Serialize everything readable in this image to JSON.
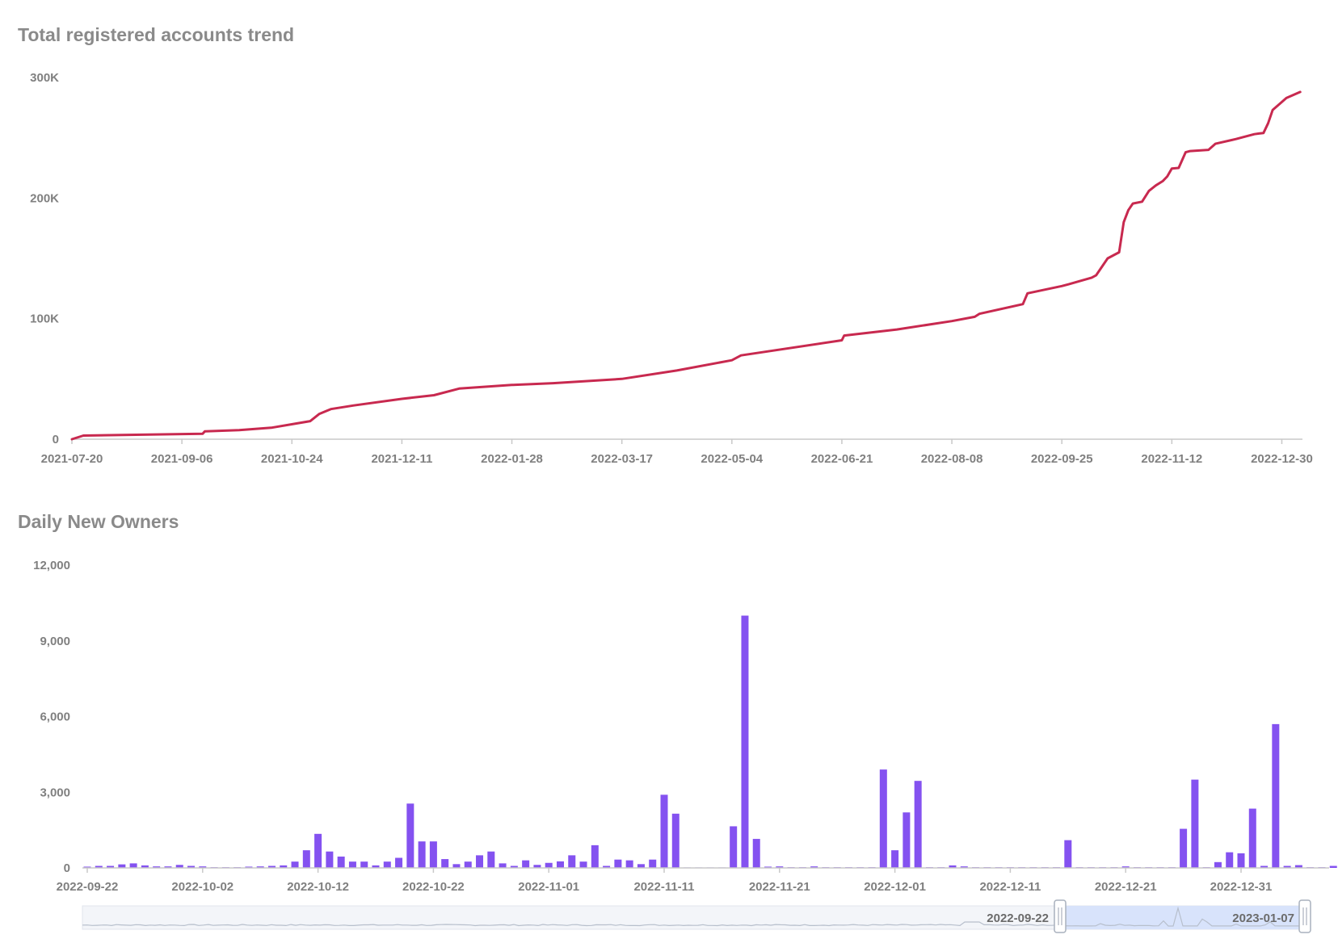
{
  "chart_data": [
    {
      "type": "line",
      "title": "Total registered accounts trend",
      "color": "#c8294f",
      "x_ticks": [
        "2021-07-20",
        "2021-09-06",
        "2021-10-24",
        "2021-12-11",
        "2022-01-28",
        "2022-03-17",
        "2022-05-04",
        "2022-06-21",
        "2022-08-08",
        "2022-09-25",
        "2022-11-12",
        "2022-12-30"
      ],
      "y_ticks": [
        "0",
        "100K",
        "200K",
        "300K"
      ],
      "ylim": [
        0,
        300000
      ],
      "xlim": [
        "2021-07-20",
        "2023-01-08"
      ],
      "x": [
        "2021-07-20",
        "2021-07-25",
        "2021-09-15",
        "2021-09-16",
        "2021-10-01",
        "2021-10-15",
        "2021-11-01",
        "2021-11-05",
        "2021-11-10",
        "2021-11-20",
        "2021-12-11",
        "2021-12-25",
        "2022-01-05",
        "2022-01-28",
        "2022-02-15",
        "2022-03-17",
        "2022-04-10",
        "2022-05-04",
        "2022-05-08",
        "2022-06-21",
        "2022-06-22",
        "2022-07-15",
        "2022-08-08",
        "2022-08-18",
        "2022-08-20",
        "2022-09-08",
        "2022-09-10",
        "2022-09-25",
        "2022-09-28",
        "2022-10-08",
        "2022-10-10",
        "2022-10-15",
        "2022-10-20",
        "2022-10-22",
        "2022-10-24",
        "2022-10-26",
        "2022-10-30",
        "2022-11-02",
        "2022-11-05",
        "2022-11-08",
        "2022-11-10",
        "2022-11-12",
        "2022-11-15",
        "2022-11-18",
        "2022-11-20",
        "2022-11-28",
        "2022-12-01",
        "2022-12-10",
        "2022-12-12",
        "2022-12-18",
        "2022-12-20",
        "2022-12-22",
        "2022-12-24",
        "2022-12-26",
        "2023-01-01",
        "2023-01-07"
      ],
      "series": [
        {
          "values": [
            0,
            3000,
            4500,
            6500,
            7500,
            9500,
            15000,
            21000,
            25000,
            28000,
            33500,
            36500,
            42000,
            45000,
            46500,
            50000,
            57000,
            65500,
            69500,
            82000,
            86000,
            91000,
            98000,
            101500,
            104000,
            112000,
            121000,
            127000,
            128500,
            134000,
            136000,
            150000,
            155000,
            180000,
            190000,
            195500,
            197000,
            206000,
            210500,
            214000,
            218000,
            224500,
            225000,
            238000,
            239000,
            240000,
            245000,
            249000,
            250000,
            253000,
            253500,
            254000,
            262000,
            273000,
            283000,
            288000
          ]
        }
      ]
    },
    {
      "type": "bar",
      "title": "Daily New Owners",
      "color": "#8452f0",
      "x_ticks": [
        "2022-09-22",
        "2022-10-02",
        "2022-10-12",
        "2022-10-22",
        "2022-11-01",
        "2022-11-11",
        "2022-11-21",
        "2022-12-01",
        "2022-12-11",
        "2022-12-21",
        "2022-12-31"
      ],
      "y_ticks": [
        "0",
        "3,000",
        "6,000",
        "9,000",
        "12,000"
      ],
      "ylim": [
        0,
        12000
      ],
      "x_start": "2022-09-22",
      "x_end": "2023-01-07",
      "values": [
        50,
        80,
        80,
        140,
        180,
        100,
        60,
        60,
        120,
        80,
        60,
        30,
        30,
        30,
        50,
        60,
        80,
        100,
        250,
        700,
        1350,
        650,
        450,
        250,
        250,
        100,
        250,
        400,
        2550,
        1050,
        1050,
        350,
        150,
        250,
        500,
        650,
        180,
        80,
        300,
        120,
        200,
        260,
        500,
        250,
        900,
        80,
        330,
        300,
        150,
        330,
        2900,
        2150,
        20,
        20,
        20,
        20,
        1650,
        10000,
        1150,
        50,
        60,
        30,
        30,
        60,
        30,
        30,
        30,
        30,
        30,
        3900,
        700,
        2200,
        3450,
        30,
        30,
        100,
        60,
        30,
        30,
        30,
        30,
        30,
        30,
        30,
        30,
        1100,
        30,
        30,
        30,
        30,
        60,
        30,
        30,
        30,
        30,
        1550,
        3500,
        30,
        230,
        620,
        580,
        2350,
        80,
        5700,
        80,
        110,
        30,
        30,
        80,
        80,
        30,
        30,
        150,
        30,
        30,
        30,
        30
      ]
    }
  ],
  "range_slider": {
    "start_label": "2022-09-22",
    "end_label": "2023-01-07"
  }
}
